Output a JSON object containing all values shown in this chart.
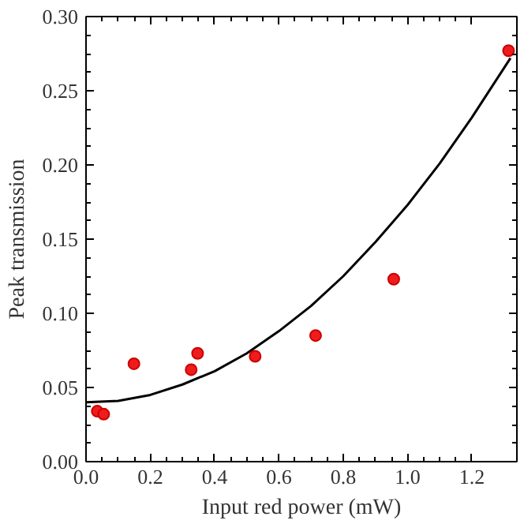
{
  "chart_data": {
    "type": "scatter",
    "xlabel": "Input red power (mW)",
    "ylabel": "Peak transmission",
    "xlim": [
      0,
      1.34
    ],
    "ylim": [
      0,
      0.3
    ],
    "xticks": [
      {
        "value": 0,
        "label": "0.0"
      },
      {
        "value": 0.2,
        "label": "0.2"
      },
      {
        "value": 0.4,
        "label": "0.4"
      },
      {
        "value": 0.6,
        "label": "0.6"
      },
      {
        "value": 0.8,
        "label": "0.8"
      },
      {
        "value": 1.0,
        "label": "1.0"
      },
      {
        "value": 1.2,
        "label": "1.2"
      }
    ],
    "yticks": [
      {
        "value": 0,
        "label": "0.00"
      },
      {
        "value": 0.05,
        "label": "0.05"
      },
      {
        "value": 0.1,
        "label": "0.10"
      },
      {
        "value": 0.15,
        "label": "0.15"
      },
      {
        "value": 0.2,
        "label": "0.20"
      },
      {
        "value": 0.25,
        "label": "0.25"
      },
      {
        "value": 0.3,
        "label": "0.30"
      }
    ],
    "grid": false,
    "series": [
      {
        "marker": "circle",
        "color": "#ee1c1c",
        "x": [
          0.035,
          0.055,
          0.149,
          0.327,
          0.347,
          0.526,
          0.714,
          0.957,
          1.314
        ],
        "values": [
          0.034,
          0.032,
          0.066,
          0.062,
          0.073,
          0.071,
          0.085,
          0.123,
          0.277
        ]
      },
      {
        "type": "line",
        "color": "#000000",
        "line_style": "solid",
        "x": [
          0,
          0.1,
          0.2,
          0.3,
          0.4,
          0.5,
          0.6,
          0.7,
          0.8,
          0.9,
          1.0,
          1.1,
          1.2,
          1.32
        ],
        "values": [
          0.04,
          0.041,
          0.045,
          0.052,
          0.061,
          0.073,
          0.088,
          0.105,
          0.125,
          0.148,
          0.173,
          0.201,
          0.232,
          0.272
        ]
      }
    ]
  }
}
